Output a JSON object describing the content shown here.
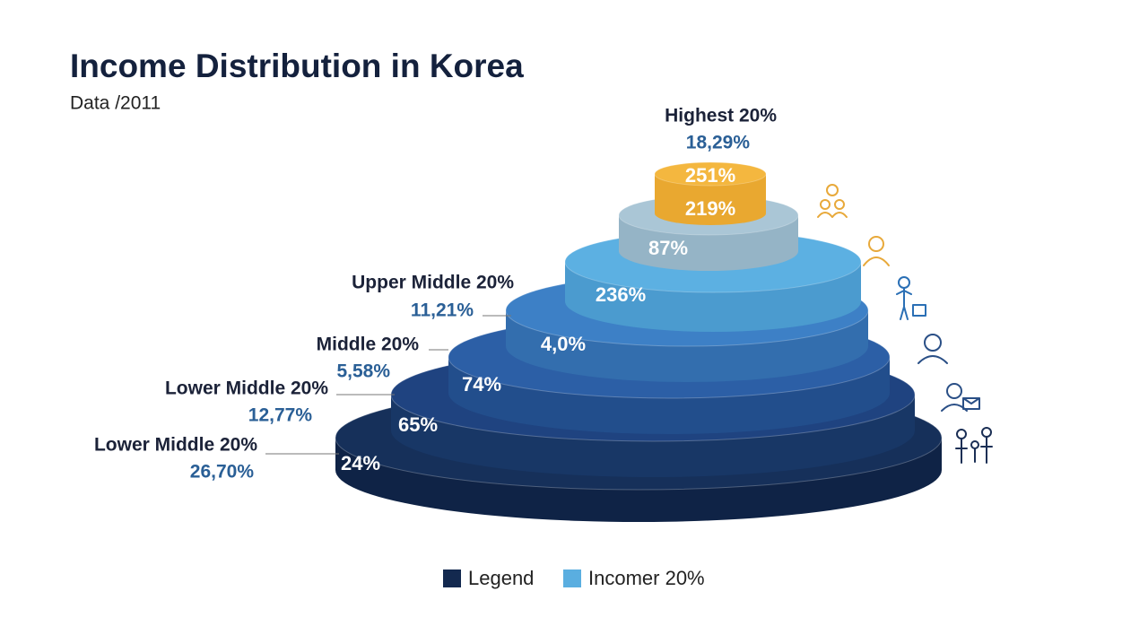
{
  "title": "Income Distribution in Korea",
  "subtitle": "Data /2011",
  "tiers": [
    {
      "label": "24%"
    },
    {
      "label": "65%"
    },
    {
      "label": "74%"
    },
    {
      "label": "4,0%"
    },
    {
      "label": "236%"
    },
    {
      "label": "87%"
    },
    {
      "labels": [
        "251%",
        "219%"
      ]
    }
  ],
  "side_labels": [
    {
      "name": "Highest 20%",
      "value": "18,29%"
    },
    {
      "name": "Upper Middle 20%",
      "value": "11,21%"
    },
    {
      "name": "Middle 20%",
      "value": "5,58%"
    },
    {
      "name": "Lower Middle 20%",
      "value": "12,77%"
    },
    {
      "name": "Lower Middle 20%",
      "value": "26,70%"
    }
  ],
  "legend": [
    {
      "name": "Legend",
      "color": "#13294f"
    },
    {
      "name": "Incomer 20%",
      "color": "#5aaee0"
    }
  ]
}
